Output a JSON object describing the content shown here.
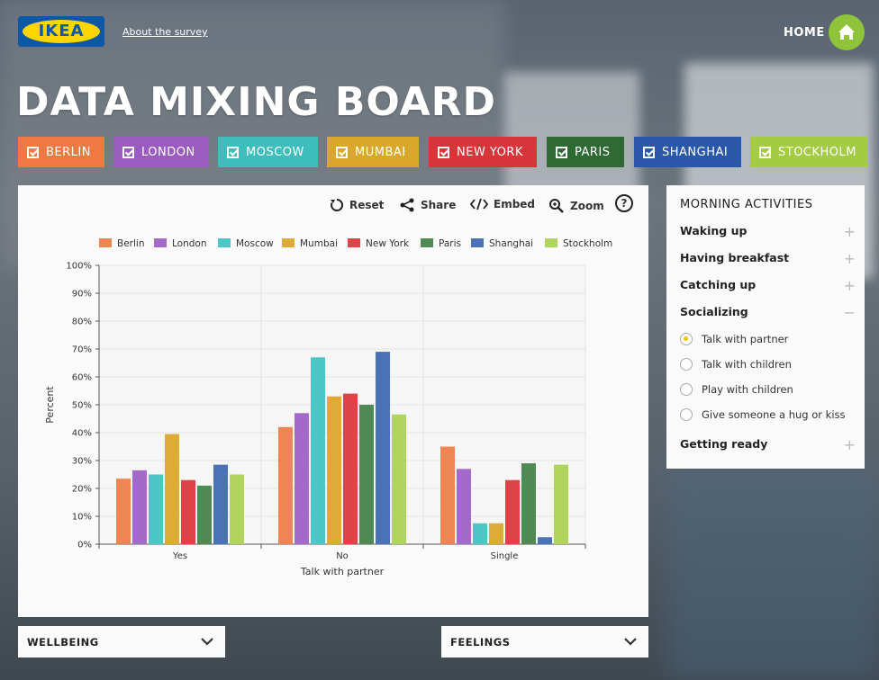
{
  "header": {
    "logo_text": "IKEA",
    "about_link": "About the survey",
    "home_label": "HOME",
    "title": "DATA MIXING BOARD"
  },
  "cities": [
    {
      "label": "BERLIN",
      "color": "#ee7943"
    },
    {
      "label": "LONDON",
      "color": "#9b5cc0"
    },
    {
      "label": "MOSCOW",
      "color": "#3fbcbc"
    },
    {
      "label": "MUMBAI",
      "color": "#d9a82b"
    },
    {
      "label": "NEW YORK",
      "color": "#d8353a"
    },
    {
      "label": "PARIS",
      "color": "#2f6a35"
    },
    {
      "label": "SHANGHAI",
      "color": "#2a57a8"
    },
    {
      "label": "STOCKHOLM",
      "color": "#a4cb44"
    }
  ],
  "toolbar": {
    "reset": "Reset",
    "share": "Share",
    "embed": "Embed",
    "zoom": "Zoom",
    "help": "?"
  },
  "sidebar": {
    "title": "MORNING ACTIVITIES",
    "items": [
      {
        "label": "Waking up",
        "sign": "+"
      },
      {
        "label": "Having breakfast",
        "sign": "+"
      },
      {
        "label": "Catching up",
        "sign": "+"
      },
      {
        "label": "Socializing",
        "sign": "−"
      },
      {
        "label": "Getting ready",
        "sign": "+"
      }
    ],
    "options": [
      {
        "label": "Talk with partner",
        "selected": true
      },
      {
        "label": "Talk with children",
        "selected": false
      },
      {
        "label": "Play with children",
        "selected": false
      },
      {
        "label": "Give someone a hug or kiss",
        "selected": false
      }
    ]
  },
  "dropdowns": {
    "left": "WELLBEING",
    "right": "FEELINGS"
  },
  "chart_data": {
    "type": "bar",
    "xlabel": "Talk with partner",
    "ylabel": "Percent",
    "ylim": [
      0,
      100
    ],
    "yticks": [
      "0%",
      "10%",
      "20%",
      "30%",
      "40%",
      "50%",
      "60%",
      "70%",
      "80%",
      "90%",
      "100%"
    ],
    "categories": [
      "Yes",
      "No",
      "Single"
    ],
    "legend_position": "top",
    "grid": true,
    "series": [
      {
        "name": "Berlin",
        "color": "#ee8552",
        "values": [
          23.5,
          42,
          35
        ]
      },
      {
        "name": "London",
        "color": "#a46ac9",
        "values": [
          26.5,
          47,
          27
        ]
      },
      {
        "name": "Moscow",
        "color": "#4cc7c7",
        "values": [
          25,
          67,
          7.5
        ]
      },
      {
        "name": "Mumbai",
        "color": "#dcab38",
        "values": [
          39.5,
          53,
          7.5
        ]
      },
      {
        "name": "New York",
        "color": "#dd4347",
        "values": [
          23,
          54,
          23
        ]
      },
      {
        "name": "Paris",
        "color": "#4f8a55",
        "values": [
          21,
          50,
          29
        ]
      },
      {
        "name": "Shanghai",
        "color": "#4a72b6",
        "values": [
          28.5,
          69,
          2.5
        ]
      },
      {
        "name": "Stockholm",
        "color": "#b0d45c",
        "values": [
          25,
          46.5,
          28.5
        ]
      }
    ]
  }
}
